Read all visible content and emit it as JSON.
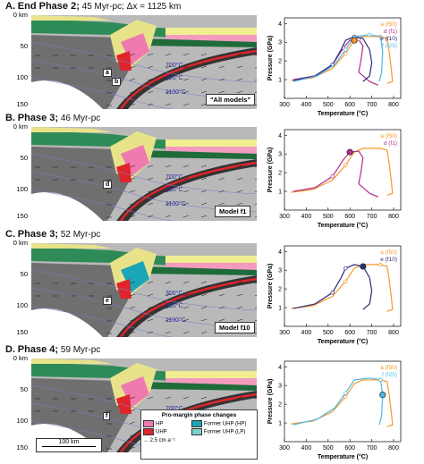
{
  "panels": [
    {
      "letter": "A.",
      "title_bold": "End Phase 2;",
      "title_rest": "45 Myr-pc; Δx = 1125 km",
      "model": "\"All models\"",
      "labels": [
        "a",
        "b"
      ],
      "temps": [
        "700°C",
        "900°C",
        "1100°C"
      ],
      "pt_legend": [
        {
          "text": "a (f50)",
          "color": "#f39a2b"
        },
        {
          "text": "d (f1)",
          "color": "#b0308c"
        },
        {
          "text": "e (f10)",
          "color": "#2a2d7c"
        },
        {
          "text": "f (f25)",
          "color": "#4fb8e8"
        }
      ]
    },
    {
      "letter": "B.",
      "title_bold": "Phase 3;",
      "title_rest": "46 Myr-pc",
      "model": "Model f1",
      "labels": [
        "d"
      ],
      "temps": [
        "700°C",
        "900°C",
        "1100°C"
      ],
      "pt_legend": [
        {
          "text": "a (f50)",
          "color": "#f39a2b"
        },
        {
          "text": "d (f1)",
          "color": "#b0308c"
        }
      ]
    },
    {
      "letter": "C.",
      "title_bold": "Phase 3;",
      "title_rest": "52 Myr-pc",
      "model": "Model f10",
      "labels": [
        "e"
      ],
      "temps": [
        "300°C",
        "900°C",
        "1100°C"
      ],
      "pt_legend": [
        {
          "text": "a (f50)",
          "color": "#f39a2b"
        },
        {
          "text": "e (f10)",
          "color": "#2a2d7c"
        }
      ]
    },
    {
      "letter": "D.",
      "title_bold": "Phase 4;",
      "title_rest": "59 Myr-pc",
      "model": "Model f25",
      "labels": [
        "f"
      ],
      "temps": [
        "700°C",
        "100°C"
      ],
      "pt_legend": [
        {
          "text": "a (f50)",
          "color": "#f39a2b"
        },
        {
          "text": "f (f25)",
          "color": "#4fb8e8"
        }
      ]
    }
  ],
  "depth_ticks": [
    "0 km",
    "50",
    "100",
    "150"
  ],
  "pt_axis": {
    "xlabel": "Temperature (°C)",
    "ylabel": "Pressure (GPa)",
    "xticks": [
      "300",
      "400",
      "500",
      "600",
      "700",
      "800"
    ],
    "yticks": [
      "1",
      "2",
      "3",
      "4"
    ]
  },
  "legend": {
    "title": "Pro-margin phase changes",
    "items": [
      {
        "label": "HP",
        "color": "#ef7ab0"
      },
      {
        "label": "Former UHP (HP)",
        "color": "#1aa6b8"
      },
      {
        "label": "UHP",
        "color": "#e0242b"
      },
      {
        "label": "Former UHP (LP)",
        "color": "#7fcfc9"
      }
    ],
    "arrow_label": "2.5 cm a⁻¹",
    "scale": "100 km"
  },
  "colors": {
    "orange": "#f39a2b",
    "magenta": "#b0308c",
    "navy": "#2a2d7c",
    "cyan": "#4fb8e8"
  }
}
